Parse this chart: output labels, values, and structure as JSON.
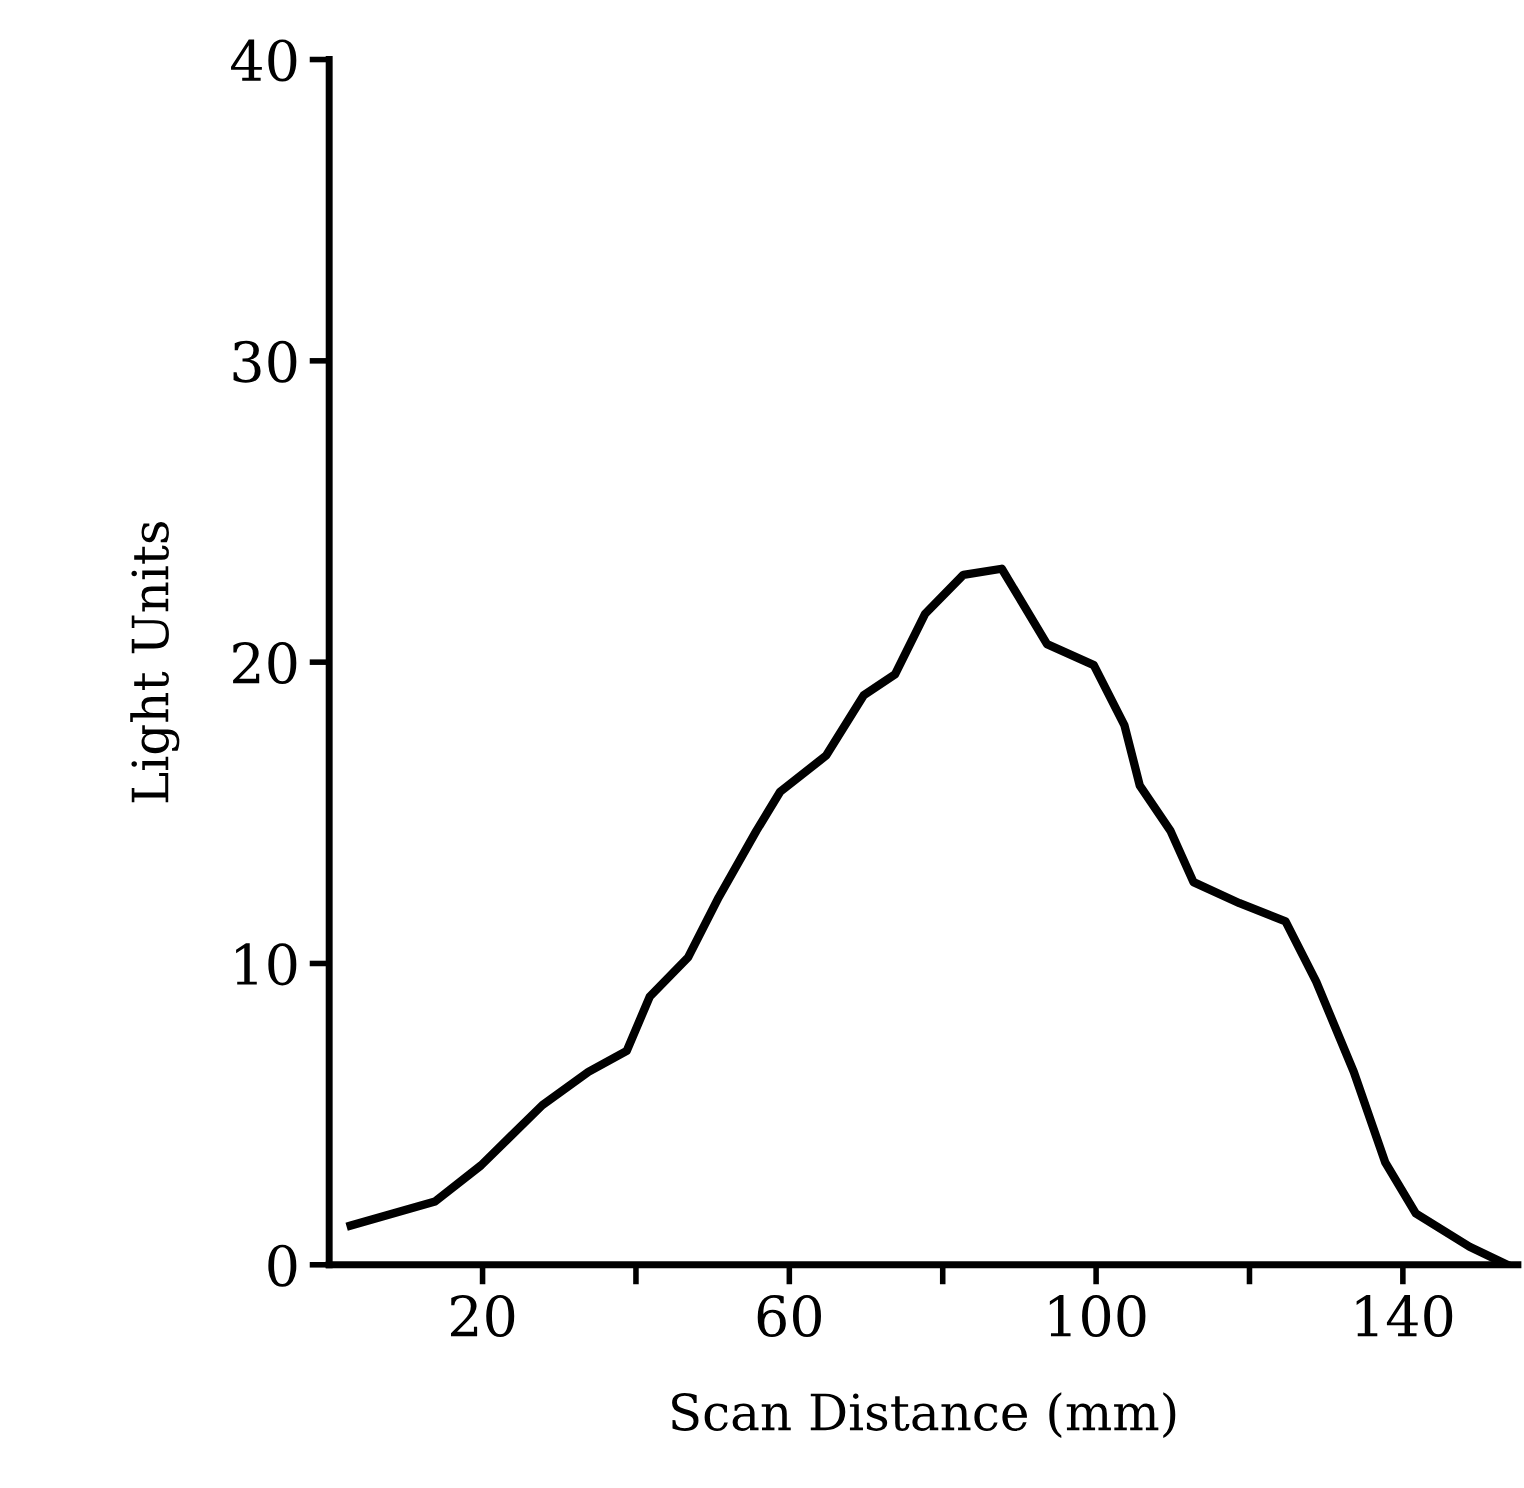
{
  "chart_data": {
    "type": "line",
    "xlabel": "Scan Distance (mm)",
    "ylabel": "Light Units",
    "x": [
      2.8,
      13.8,
      19.8,
      27.8,
      33.8,
      38.8,
      41.8,
      46.8,
      50.8,
      55.7,
      58.8,
      64.8,
      69.7,
      73.8,
      77.7,
      82.7,
      87.7,
      93.6,
      99.7,
      103.7,
      105.7,
      109.7,
      112.7,
      118.7,
      124.7,
      128.7,
      133.6,
      137.7,
      141.7,
      148.7,
      153.6
    ],
    "values": [
      1.3,
      2.1,
      3.3,
      5.3,
      6.4,
      7.1,
      8.9,
      10.2,
      12.2,
      14.4,
      15.7,
      16.9,
      18.9,
      19.6,
      21.6,
      22.9,
      23.1,
      20.6,
      19.9,
      17.9,
      15.9,
      14.4,
      12.7,
      12.0,
      11.4,
      9.4,
      6.4,
      3.4,
      1.7,
      0.6,
      0
    ],
    "color": "#000000",
    "xlim": [
      0,
      155
    ],
    "xticks": [
      {
        "value": 20,
        "label": "20"
      },
      {
        "value": 40,
        "label": null
      },
      {
        "value": 60,
        "label": "60"
      },
      {
        "value": 80,
        "label": null
      },
      {
        "value": 100,
        "label": "100"
      },
      {
        "value": 120,
        "label": null
      },
      {
        "value": 140,
        "label": "140"
      }
    ],
    "ylim": [
      0,
      40
    ],
    "yticks": [
      0,
      10,
      20,
      30,
      40
    ],
    "grid": false,
    "marker": "none",
    "line_style": "solid"
  }
}
